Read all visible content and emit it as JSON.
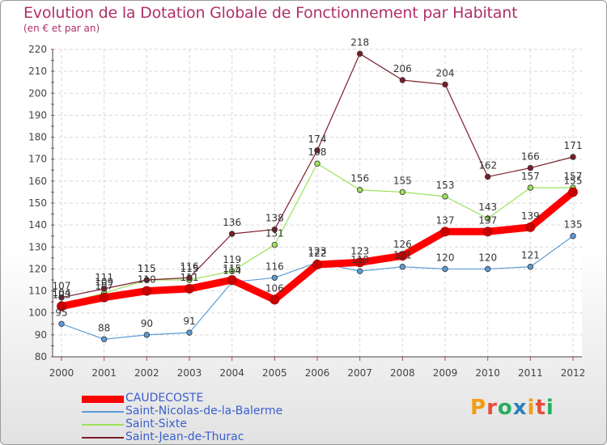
{
  "header": {
    "title": "Evolution de la Dotation Globale de Fonctionnement par Habitant",
    "subtitle": "(en € et par an)"
  },
  "logo": {
    "text": "Proxiti",
    "colors": [
      "#f39c12",
      "#e74c3c",
      "#27ae60",
      "#2980b9"
    ]
  },
  "chart_data": {
    "type": "line",
    "title": "Evolution de la Dotation Globale de Fonctionnement par Habitant",
    "subtitle": "(en € et par an)",
    "xlabel": "",
    "ylabel": "",
    "x": [
      "2000",
      "2001",
      "2002",
      "2003",
      "2004",
      "2005",
      "2006",
      "2007",
      "2008",
      "2009",
      "2010",
      "2011",
      "2012"
    ],
    "ylim": [
      80,
      220
    ],
    "yticks": [
      "80",
      "90",
      "100",
      "110",
      "120",
      "130",
      "140",
      "150",
      "160",
      "170",
      "180",
      "190",
      "200",
      "210",
      "220"
    ],
    "grid": true,
    "legend_position": "bottom-left",
    "series": [
      {
        "name": "CAUDECOSTE",
        "color": "#ff0000",
        "values": [
          103,
          107,
          110,
          111,
          115,
          106,
          122,
          123,
          126,
          137,
          137,
          139,
          155
        ],
        "labels": [
          "103",
          "107",
          "110",
          "111",
          "115",
          "106",
          "122",
          "123",
          "126",
          "137",
          "137",
          "139",
          "155"
        ]
      },
      {
        "name": "Saint-Nicolas-de-la-Balerme",
        "color": "#5b9bd5",
        "values": [
          95,
          88,
          90,
          91,
          114,
          116,
          123,
          119,
          121,
          120,
          120,
          121,
          135
        ],
        "labels": [
          "95",
          "88",
          "90",
          "91",
          "114",
          "116",
          "123",
          "119",
          "121",
          "120",
          "120",
          "121",
          "135"
        ]
      },
      {
        "name": "Saint-Sixte",
        "color": "#9be25a",
        "values": [
          104,
          109,
          115,
          115,
          119,
          131,
          168,
          156,
          155,
          153,
          143,
          157,
          157
        ],
        "labels": [
          "104",
          "109",
          "115",
          "115",
          "119",
          "131",
          "168",
          "156",
          "155",
          "153",
          "143",
          "157",
          "157"
        ]
      },
      {
        "name": "Saint-Jean-de-Thurac",
        "color": "#7a1e2a",
        "values": [
          107,
          111,
          115,
          116,
          136,
          138,
          174,
          218,
          206,
          204,
          162,
          166,
          171
        ],
        "labels": [
          "107",
          "111",
          "115",
          "116",
          "136",
          "138",
          "174",
          "218",
          "206",
          "204",
          "162",
          "166",
          "171"
        ]
      }
    ]
  }
}
